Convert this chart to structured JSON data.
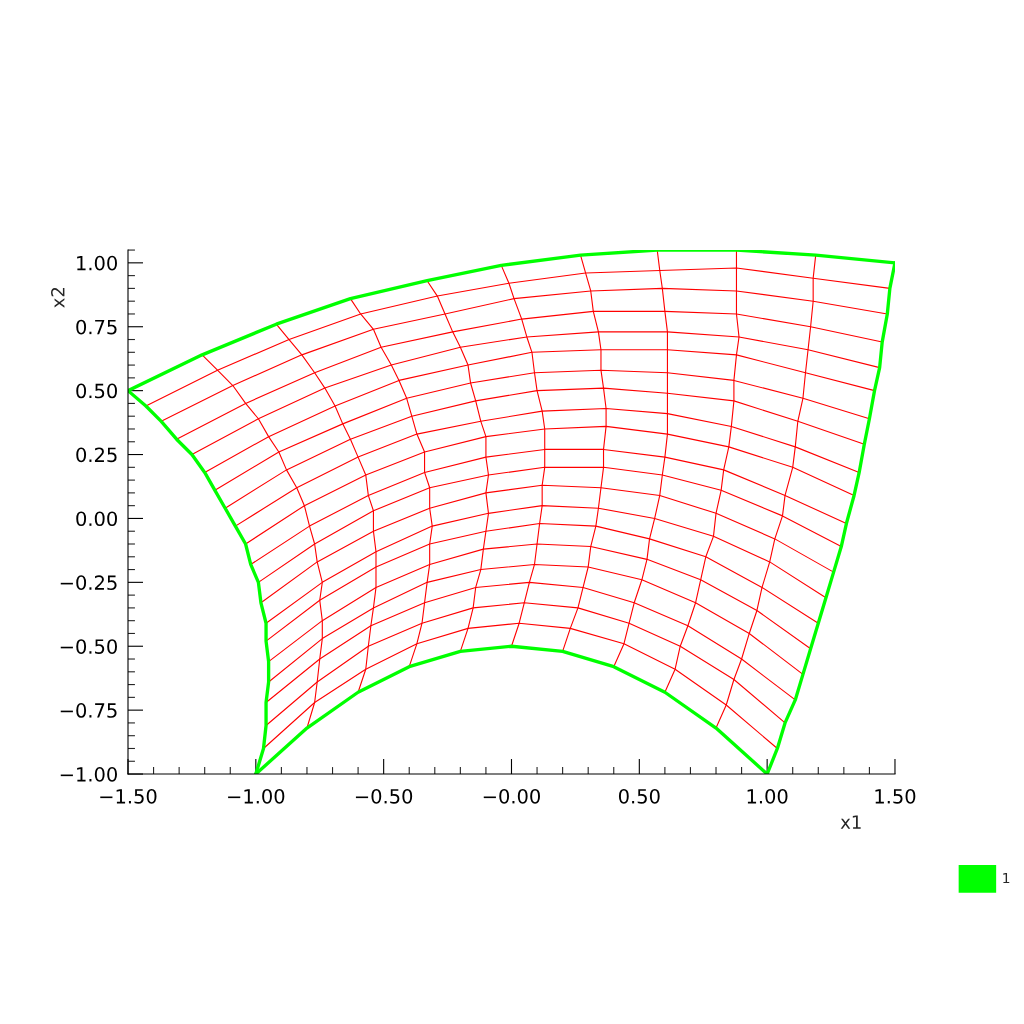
{
  "chart_data": {
    "type": "line",
    "xlabel": "x1",
    "ylabel": "x2",
    "xlim": [
      -1.5,
      1.5
    ],
    "ylim": [
      -1.0,
      1.05
    ],
    "xticks": [
      {
        "value": -1.5,
        "label": "−1.50"
      },
      {
        "value": -1.4,
        "label": null
      },
      {
        "value": -1.3,
        "label": null
      },
      {
        "value": -1.2,
        "label": null
      },
      {
        "value": -1.1,
        "label": null
      },
      {
        "value": -1.0,
        "label": "−1.00"
      },
      {
        "value": -0.9,
        "label": null
      },
      {
        "value": -0.8,
        "label": null
      },
      {
        "value": -0.7,
        "label": null
      },
      {
        "value": -0.6,
        "label": null
      },
      {
        "value": -0.5,
        "label": "−0.50"
      },
      {
        "value": -0.4,
        "label": null
      },
      {
        "value": -0.3,
        "label": null
      },
      {
        "value": -0.2,
        "label": null
      },
      {
        "value": -0.1,
        "label": null
      },
      {
        "value": 0,
        "label": "−0.00"
      },
      {
        "value": 0.1,
        "label": null
      },
      {
        "value": 0.2,
        "label": null
      },
      {
        "value": 0.3,
        "label": null
      },
      {
        "value": 0.4,
        "label": null
      },
      {
        "value": 0.5,
        "label": "0.50"
      },
      {
        "value": 0.6,
        "label": null
      },
      {
        "value": 0.7,
        "label": null
      },
      {
        "value": 0.8,
        "label": null
      },
      {
        "value": 0.9,
        "label": null
      },
      {
        "value": 1.0,
        "label": "1.00"
      },
      {
        "value": 1.1,
        "label": null
      },
      {
        "value": 1.2,
        "label": null
      },
      {
        "value": 1.3,
        "label": null
      },
      {
        "value": 1.4,
        "label": null
      },
      {
        "value": 1.5,
        "label": "1.50"
      }
    ],
    "yticks": [
      {
        "value": -1.0,
        "label": "−1.00"
      },
      {
        "value": -0.95,
        "label": null
      },
      {
        "value": -0.9,
        "label": null
      },
      {
        "value": -0.85,
        "label": null
      },
      {
        "value": -0.8,
        "label": null
      },
      {
        "value": -0.75,
        "label": "−0.75"
      },
      {
        "value": -0.7,
        "label": null
      },
      {
        "value": -0.65,
        "label": null
      },
      {
        "value": -0.6,
        "label": null
      },
      {
        "value": -0.55,
        "label": null
      },
      {
        "value": -0.5,
        "label": "−0.50"
      },
      {
        "value": -0.45,
        "label": null
      },
      {
        "value": -0.4,
        "label": null
      },
      {
        "value": -0.35,
        "label": null
      },
      {
        "value": -0.3,
        "label": null
      },
      {
        "value": -0.25,
        "label": "−0.25"
      },
      {
        "value": -0.2,
        "label": null
      },
      {
        "value": -0.15,
        "label": null
      },
      {
        "value": -0.1,
        "label": null
      },
      {
        "value": -0.05,
        "label": null
      },
      {
        "value": 0,
        "label": "0.00"
      },
      {
        "value": 0.05,
        "label": null
      },
      {
        "value": 0.1,
        "label": null
      },
      {
        "value": 0.15,
        "label": null
      },
      {
        "value": 0.2,
        "label": null
      },
      {
        "value": 0.25,
        "label": "0.25"
      },
      {
        "value": 0.3,
        "label": null
      },
      {
        "value": 0.35,
        "label": null
      },
      {
        "value": 0.4,
        "label": null
      },
      {
        "value": 0.45,
        "label": null
      },
      {
        "value": 0.5,
        "label": "0.50"
      },
      {
        "value": 0.55,
        "label": null
      },
      {
        "value": 0.6,
        "label": null
      },
      {
        "value": 0.65,
        "label": null
      },
      {
        "value": 0.7,
        "label": null
      },
      {
        "value": 0.75,
        "label": "0.75"
      },
      {
        "value": 0.8,
        "label": null
      },
      {
        "value": 0.85,
        "label": null
      },
      {
        "value": 0.9,
        "label": null
      },
      {
        "value": 0.95,
        "label": null
      },
      {
        "value": 1.0,
        "label": "1.00"
      },
      {
        "value": 1.05,
        "label": null
      }
    ],
    "legend": "bottom right",
    "series": [
      {
        "color": "#ff0000",
        "x": [
          -0.97,
          -0.77,
          -0.57,
          -0.37,
          -0.17,
          0.03,
          0.23,
          0.44,
          0.64,
          0.84,
          1.04
        ],
        "values": [
          -0.9,
          -0.72,
          -0.59,
          -0.49,
          -0.43,
          -0.41,
          -0.43,
          -0.49,
          -0.59,
          -0.73,
          -0.9
        ]
      },
      {
        "color": "#ff0000",
        "x": [
          -0.96,
          -0.76,
          -0.56,
          -0.35,
          -0.15,
          0.05,
          0.26,
          0.46,
          0.66,
          0.87,
          1.07
        ],
        "values": [
          -0.81,
          -0.64,
          -0.5,
          -0.41,
          -0.35,
          -0.33,
          -0.35,
          -0.41,
          -0.5,
          -0.63,
          -0.8
        ]
      },
      {
        "color": "#ff0000",
        "x": [
          -0.96,
          -0.75,
          -0.55,
          -0.34,
          -0.14,
          0.07,
          0.28,
          0.48,
          0.69,
          0.9,
          1.11
        ],
        "values": [
          -0.72,
          -0.55,
          -0.42,
          -0.33,
          -0.27,
          -0.25,
          -0.27,
          -0.33,
          -0.42,
          -0.55,
          -0.71
        ]
      },
      {
        "color": "#ff0000",
        "x": [
          -0.95,
          -0.74,
          -0.54,
          -0.33,
          -0.12,
          0.09,
          0.3,
          0.51,
          0.72,
          0.93,
          1.14
        ],
        "values": [
          -0.64,
          -0.47,
          -0.35,
          -0.25,
          -0.2,
          -0.18,
          -0.19,
          -0.24,
          -0.33,
          -0.45,
          -0.61
        ]
      },
      {
        "color": "#ff0000",
        "x": [
          -0.95,
          -0.74,
          -0.53,
          -0.32,
          -0.11,
          0.1,
          0.31,
          0.53,
          0.74,
          0.96,
          1.17
        ],
        "values": [
          -0.56,
          -0.4,
          -0.27,
          -0.18,
          -0.12,
          -0.1,
          -0.11,
          -0.16,
          -0.24,
          -0.36,
          -0.51
        ]
      },
      {
        "color": "#ff0000",
        "x": [
          -0.96,
          -0.75,
          -0.53,
          -0.32,
          -0.1,
          0.11,
          0.33,
          0.54,
          0.76,
          0.98,
          1.2
        ],
        "values": [
          -0.48,
          -0.32,
          -0.19,
          -0.1,
          -0.05,
          -0.02,
          -0.03,
          -0.08,
          -0.15,
          -0.27,
          -0.41
        ]
      },
      {
        "color": "#ff0000",
        "x": [
          -0.96,
          -0.74,
          -0.53,
          -0.31,
          -0.09,
          0.12,
          0.34,
          0.56,
          0.79,
          1.01,
          1.23
        ],
        "values": [
          -0.41,
          -0.25,
          -0.13,
          -0.03,
          0.02,
          0.05,
          0.04,
          0,
          -0.07,
          -0.17,
          -0.31
        ]
      },
      {
        "color": "#ff0000",
        "x": [
          -0.98,
          -0.76,
          -0.54,
          -0.32,
          -0.1,
          0.12,
          0.35,
          0.58,
          0.8,
          1.03,
          1.26
        ],
        "values": [
          -0.33,
          -0.17,
          -0.05,
          0.04,
          0.1,
          0.13,
          0.12,
          0.09,
          0.02,
          -0.08,
          -0.21
        ]
      },
      {
        "color": "#ff0000",
        "x": [
          -0.99,
          -0.77,
          -0.54,
          -0.32,
          -0.09,
          0.13,
          0.36,
          0.59,
          0.82,
          1.06,
          1.29
        ],
        "values": [
          -0.25,
          -0.1,
          0.03,
          0.12,
          0.17,
          0.2,
          0.2,
          0.17,
          0.11,
          0.01,
          -0.11
        ]
      },
      {
        "color": "#ff0000",
        "x": [
          -1.02,
          -0.79,
          -0.56,
          -0.34,
          -0.1,
          0.13,
          0.36,
          0.6,
          0.83,
          1.07,
          1.31
        ],
        "values": [
          -0.18,
          -0.03,
          0.09,
          0.18,
          0.24,
          0.27,
          0.27,
          0.24,
          0.19,
          0.09,
          -0.02
        ]
      },
      {
        "color": "#ff0000",
        "x": [
          -1.04,
          -0.81,
          -0.57,
          -0.34,
          -0.1,
          0.13,
          0.37,
          0.61,
          0.85,
          1.1,
          1.34
        ],
        "values": [
          -0.1,
          0.05,
          0.17,
          0.26,
          0.32,
          0.35,
          0.36,
          0.33,
          0.28,
          0.2,
          0.09
        ]
      },
      {
        "color": "#ff0000",
        "x": [
          -1.08,
          -0.84,
          -0.6,
          -0.37,
          -0.12,
          0.12,
          0.37,
          0.61,
          0.86,
          1.11,
          1.36
        ],
        "values": [
          -0.03,
          0.12,
          0.24,
          0.33,
          0.38,
          0.42,
          0.43,
          0.41,
          0.36,
          0.28,
          0.18
        ]
      },
      {
        "color": "#ff0000",
        "x": [
          -1.12,
          -0.88,
          -0.63,
          -0.39,
          -0.14,
          0.1,
          0.36,
          0.61,
          0.87,
          1.12,
          1.38
        ],
        "values": [
          0.04,
          0.19,
          0.31,
          0.4,
          0.46,
          0.5,
          0.51,
          0.49,
          0.46,
          0.38,
          0.29
        ]
      },
      {
        "color": "#ff0000",
        "x": [
          -1.16,
          -0.91,
          -0.66,
          -0.41,
          -0.16,
          0.09,
          0.35,
          0.61,
          0.87,
          1.14,
          1.4
        ],
        "values": [
          0.11,
          0.26,
          0.37,
          0.47,
          0.53,
          0.57,
          0.58,
          0.57,
          0.54,
          0.47,
          0.39
        ]
      },
      {
        "color": "#ff0000",
        "x": [
          -1.2,
          -0.95,
          -0.69,
          -0.44,
          -0.17,
          0.08,
          0.35,
          0.61,
          0.88,
          1.15,
          1.42
        ],
        "values": [
          0.18,
          0.32,
          0.44,
          0.54,
          0.6,
          0.65,
          0.66,
          0.66,
          0.64,
          0.57,
          0.5
        ]
      },
      {
        "color": "#ff0000",
        "x": [
          -1.25,
          -0.99,
          -0.73,
          -0.47,
          -0.2,
          0.06,
          0.34,
          0.61,
          0.89,
          1.16,
          1.44
        ],
        "values": [
          0.25,
          0.39,
          0.51,
          0.6,
          0.67,
          0.71,
          0.73,
          0.73,
          0.71,
          0.66,
          0.59
        ]
      },
      {
        "color": "#ff0000",
        "x": [
          -1.31,
          -1.04,
          -0.77,
          -0.51,
          -0.23,
          0.04,
          0.32,
          0.6,
          0.88,
          1.17,
          1.45
        ],
        "values": [
          0.31,
          0.45,
          0.57,
          0.67,
          0.73,
          0.78,
          0.81,
          0.81,
          0.8,
          0.75,
          0.69
        ]
      },
      {
        "color": "#ff0000",
        "x": [
          -1.37,
          -1.09,
          -0.82,
          -0.54,
          -0.26,
          0.01,
          0.31,
          0.59,
          0.88,
          1.18,
          1.47
        ],
        "values": [
          0.38,
          0.52,
          0.64,
          0.74,
          0.8,
          0.86,
          0.89,
          0.9,
          0.89,
          0.85,
          0.8
        ]
      },
      {
        "color": "#ff0000",
        "x": [
          -1.43,
          -1.15,
          -0.87,
          -0.59,
          -0.29,
          -0.01,
          0.29,
          0.58,
          0.88,
          1.18,
          1.48
        ],
        "values": [
          0.44,
          0.58,
          0.7,
          0.8,
          0.87,
          0.92,
          0.96,
          0.97,
          0.98,
          0.94,
          0.9
        ]
      },
      {
        "color": "#ff0000",
        "x": [
          -0.8,
          -0.77,
          -0.76,
          -0.75,
          -0.74,
          -0.74,
          -0.75,
          -0.74,
          -0.76,
          -0.77,
          -0.79,
          -0.81,
          -0.84,
          -0.88,
          -0.91,
          -0.95,
          -0.99,
          -1.04,
          -1.09,
          -1.15,
          -1.21
        ],
        "values": [
          -0.82,
          -0.72,
          -0.64,
          -0.55,
          -0.47,
          -0.4,
          -0.32,
          -0.25,
          -0.17,
          -0.1,
          -0.03,
          0.05,
          0.12,
          0.19,
          0.26,
          0.32,
          0.39,
          0.45,
          0.52,
          0.58,
          0.64
        ]
      },
      {
        "color": "#ff0000",
        "x": [
          -0.6,
          -0.57,
          -0.56,
          -0.55,
          -0.54,
          -0.53,
          -0.53,
          -0.53,
          -0.54,
          -0.54,
          -0.56,
          -0.57,
          -0.6,
          -0.63,
          -0.66,
          -0.69,
          -0.73,
          -0.77,
          -0.82,
          -0.87,
          -0.92
        ],
        "values": [
          -0.68,
          -0.59,
          -0.5,
          -0.42,
          -0.35,
          -0.27,
          -0.19,
          -0.13,
          -0.05,
          0.03,
          0.09,
          0.17,
          0.24,
          0.31,
          0.37,
          0.44,
          0.51,
          0.57,
          0.64,
          0.7,
          0.76
        ]
      },
      {
        "color": "#ff0000",
        "x": [
          -0.4,
          -0.37,
          -0.35,
          -0.34,
          -0.33,
          -0.32,
          -0.32,
          -0.31,
          -0.32,
          -0.32,
          -0.34,
          -0.34,
          -0.37,
          -0.39,
          -0.41,
          -0.44,
          -0.47,
          -0.51,
          -0.54,
          -0.59,
          -0.63
        ],
        "values": [
          -0.58,
          -0.49,
          -0.41,
          -0.33,
          -0.25,
          -0.18,
          -0.1,
          -0.03,
          0.04,
          0.12,
          0.18,
          0.26,
          0.33,
          0.4,
          0.47,
          0.54,
          0.6,
          0.67,
          0.74,
          0.8,
          0.86
        ]
      },
      {
        "color": "#ff0000",
        "x": [
          -0.2,
          -0.17,
          -0.15,
          -0.14,
          -0.12,
          -0.11,
          -0.1,
          -0.09,
          -0.1,
          -0.09,
          -0.1,
          -0.1,
          -0.12,
          -0.14,
          -0.16,
          -0.17,
          -0.2,
          -0.23,
          -0.26,
          -0.29,
          -0.33
        ],
        "values": [
          -0.52,
          -0.43,
          -0.35,
          -0.27,
          -0.2,
          -0.12,
          -0.05,
          0.02,
          0.1,
          0.17,
          0.24,
          0.32,
          0.38,
          0.46,
          0.53,
          0.6,
          0.67,
          0.73,
          0.8,
          0.87,
          0.93
        ]
      },
      {
        "color": "#ff0000",
        "x": [
          0,
          0.03,
          0.05,
          0.07,
          0.09,
          0.1,
          0.11,
          0.12,
          0.12,
          0.13,
          0.13,
          0.13,
          0.12,
          0.1,
          0.09,
          0.08,
          0.06,
          0.04,
          0.01,
          -0.01,
          -0.04
        ],
        "values": [
          -0.5,
          -0.41,
          -0.33,
          -0.25,
          -0.18,
          -0.1,
          -0.02,
          0.05,
          0.13,
          0.2,
          0.27,
          0.35,
          0.42,
          0.5,
          0.57,
          0.65,
          0.71,
          0.78,
          0.86,
          0.92,
          0.99
        ]
      },
      {
        "color": "#ff0000",
        "x": [
          0.2,
          0.23,
          0.26,
          0.28,
          0.3,
          0.31,
          0.33,
          0.34,
          0.35,
          0.36,
          0.36,
          0.37,
          0.37,
          0.36,
          0.35,
          0.35,
          0.34,
          0.32,
          0.31,
          0.29,
          0.27
        ],
        "values": [
          -0.52,
          -0.43,
          -0.35,
          -0.27,
          -0.19,
          -0.11,
          -0.03,
          0.04,
          0.12,
          0.2,
          0.27,
          0.36,
          0.43,
          0.51,
          0.58,
          0.66,
          0.73,
          0.81,
          0.89,
          0.96,
          1.03
        ]
      },
      {
        "color": "#ff0000",
        "x": [
          0.4,
          0.44,
          0.46,
          0.48,
          0.51,
          0.53,
          0.54,
          0.56,
          0.58,
          0.59,
          0.6,
          0.61,
          0.61,
          0.61,
          0.61,
          0.61,
          0.61,
          0.6,
          0.59,
          0.58,
          0.57
        ],
        "values": [
          -0.58,
          -0.49,
          -0.41,
          -0.33,
          -0.24,
          -0.16,
          -0.08,
          0,
          0.09,
          0.17,
          0.24,
          0.33,
          0.41,
          0.49,
          0.57,
          0.66,
          0.73,
          0.81,
          0.9,
          0.97,
          1.05
        ]
      },
      {
        "color": "#ff0000",
        "x": [
          0.6,
          0.64,
          0.66,
          0.69,
          0.72,
          0.74,
          0.76,
          0.79,
          0.8,
          0.82,
          0.83,
          0.85,
          0.86,
          0.87,
          0.87,
          0.88,
          0.89,
          0.88,
          0.88,
          0.88,
          0.88
        ],
        "values": [
          -0.68,
          -0.59,
          -0.5,
          -0.42,
          -0.33,
          -0.24,
          -0.15,
          -0.07,
          0.02,
          0.11,
          0.19,
          0.28,
          0.36,
          0.46,
          0.54,
          0.64,
          0.71,
          0.8,
          0.89,
          0.98,
          1.05
        ]
      },
      {
        "color": "#ff0000",
        "x": [
          0.8,
          0.84,
          0.87,
          0.9,
          0.93,
          0.96,
          0.98,
          1.01,
          1.03,
          1.06,
          1.07,
          1.1,
          1.11,
          1.12,
          1.14,
          1.15,
          1.16,
          1.17,
          1.18,
          1.18,
          1.19
        ],
        "values": [
          -0.82,
          -0.73,
          -0.63,
          -0.55,
          -0.45,
          -0.36,
          -0.27,
          -0.17,
          -0.08,
          0.01,
          0.09,
          0.2,
          0.28,
          0.38,
          0.47,
          0.57,
          0.66,
          0.75,
          0.85,
          0.94,
          1.03
        ]
      },
      {
        "name": "1",
        "color": "#00ff00",
        "x": [
          -1,
          -0.8,
          -0.6,
          -0.4,
          -0.2,
          0,
          0.2,
          0.4,
          0.6,
          0.8,
          1
        ],
        "values": [
          -1,
          -0.82,
          -0.68,
          -0.58,
          -0.52,
          -0.5,
          -0.52,
          -0.58,
          -0.68,
          -0.82,
          -1
        ]
      },
      {
        "color": "#00ff00",
        "x": [
          1,
          1.04,
          1.07,
          1.11,
          1.14,
          1.17,
          1.2,
          1.23,
          1.26,
          1.29,
          1.31,
          1.34,
          1.36,
          1.38,
          1.4,
          1.42,
          1.44,
          1.45,
          1.47,
          1.48,
          1.5
        ],
        "values": [
          -1,
          -0.9,
          -0.8,
          -0.71,
          -0.61,
          -0.51,
          -0.41,
          -0.31,
          -0.21,
          -0.11,
          -0.02,
          0.09,
          0.18,
          0.29,
          0.39,
          0.5,
          0.59,
          0.69,
          0.8,
          0.9,
          1.0
        ]
      },
      {
        "color": "#00ff00",
        "x": [
          -1.5,
          -1.21,
          -0.92,
          -0.63,
          -0.33,
          -0.04,
          0.27,
          0.57,
          0.88,
          1.19,
          1.5
        ],
        "values": [
          0.5,
          0.64,
          0.76,
          0.86,
          0.93,
          0.99,
          1.03,
          1.05,
          1.05,
          1.03,
          1.0
        ]
      },
      {
        "color": "#00ff00",
        "x": [
          -1,
          -0.97,
          -0.96,
          -0.96,
          -0.95,
          -0.95,
          -0.96,
          -0.96,
          -0.98,
          -0.99,
          -1.02,
          -1.04,
          -1.08,
          -1.12,
          -1.16,
          -1.2,
          -1.25,
          -1.31,
          -1.37,
          -1.43,
          -1.5
        ],
        "values": [
          -1,
          -0.9,
          -0.81,
          -0.72,
          -0.64,
          -0.56,
          -0.48,
          -0.41,
          -0.33,
          -0.25,
          -0.18,
          -0.1,
          -0.03,
          0.04,
          0.11,
          0.18,
          0.25,
          0.31,
          0.38,
          0.44,
          0.5
        ]
      }
    ]
  }
}
